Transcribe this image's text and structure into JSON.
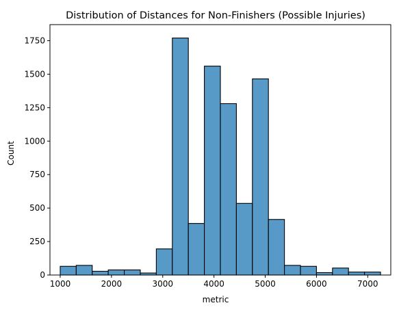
{
  "chart_data": {
    "type": "bar",
    "title": "Distribution of Distances for Non-Finishers (Possible Injuries)",
    "xlabel": "metric",
    "ylabel": "Count",
    "xlim": [
      800,
      7450
    ],
    "ylim": [
      0,
      1870
    ],
    "x_ticks": [
      1000,
      2000,
      3000,
      4000,
      5000,
      6000,
      7000
    ],
    "y_ticks": [
      0,
      250,
      500,
      750,
      1000,
      1250,
      1500,
      1750
    ],
    "bin_edges": [
      1000,
      1312.5,
      1625,
      1937.5,
      2250,
      2562.5,
      2875,
      3187.5,
      3500,
      3812.5,
      4125,
      4437.5,
      4750,
      5062.5,
      5375,
      5687.5,
      6000,
      6312.5,
      6625,
      6937.5,
      7250
    ],
    "values": [
      65,
      72,
      28,
      38,
      38,
      15,
      195,
      1770,
      385,
      1560,
      1280,
      535,
      1465,
      415,
      72,
      65,
      18,
      52,
      22,
      22
    ],
    "bar_color": "#5799c7",
    "edge_color": "#000000",
    "grid": false
  }
}
